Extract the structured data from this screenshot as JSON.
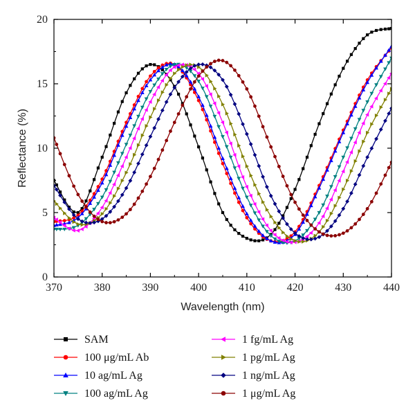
{
  "chart_data": {
    "type": "line",
    "title": "",
    "xlabel": "Wavelength (nm)",
    "ylabel": "Reflectance (%)",
    "xlim": [
      370,
      440
    ],
    "ylim": [
      0,
      20
    ],
    "xticks": [
      "370",
      "380",
      "390",
      "400",
      "410",
      "420",
      "430",
      "440"
    ],
    "yticks": [
      "0",
      "5",
      "10",
      "15",
      "20"
    ],
    "grid": false,
    "legend_position": "bottom",
    "series": [
      {
        "name": "SAM",
        "color": "#000000",
        "marker": "square",
        "x": [
          370,
          375,
          380,
          385,
          390,
          395,
          400,
          405,
          410,
          415,
          420,
          425,
          430,
          435,
          440
        ],
        "y": [
          7.5,
          5.0,
          9.3,
          14.3,
          16.5,
          14.8,
          10.1,
          5.0,
          3.0,
          3.3,
          6.8,
          11.9,
          16.2,
          18.8,
          19.3
        ]
      },
      {
        "name": "100 μg/mL Ab",
        "color": "#ff0000",
        "marker": "circle",
        "x": [
          370,
          375,
          380,
          385,
          390,
          395,
          400,
          405,
          410,
          415,
          420,
          425,
          430,
          435,
          440
        ],
        "y": [
          4.3,
          4.8,
          7.6,
          12.0,
          15.6,
          16.5,
          13.7,
          8.8,
          4.6,
          2.8,
          3.5,
          7.1,
          11.4,
          15.3,
          17.8
        ]
      },
      {
        "name": "10 ag/mL Ag",
        "color": "#0000ff",
        "marker": "triangle-up",
        "x": [
          370,
          375,
          380,
          385,
          390,
          395,
          400,
          405,
          410,
          415,
          420,
          425,
          430,
          435,
          440
        ],
        "y": [
          4.0,
          4.6,
          7.3,
          11.7,
          15.3,
          16.5,
          14.0,
          9.2,
          4.9,
          2.8,
          3.3,
          6.9,
          11.2,
          15.1,
          17.9
        ]
      },
      {
        "name": "100 ag/mL Ag",
        "color": "#008080",
        "marker": "triangle-down",
        "x": [
          370,
          375,
          380,
          385,
          390,
          395,
          400,
          405,
          410,
          415,
          420,
          425,
          430,
          435,
          440
        ],
        "y": [
          3.7,
          4.0,
          6.2,
          10.3,
          14.4,
          16.5,
          15.2,
          10.9,
          6.2,
          3.2,
          2.8,
          5.0,
          9.3,
          13.6,
          17.0
        ]
      },
      {
        "name": "1 fg/mL Ag",
        "color": "#ff00ff",
        "marker": "triangle-left",
        "x": [
          370,
          375,
          380,
          385,
          390,
          395,
          400,
          405,
          410,
          415,
          420,
          425,
          430,
          435,
          440
        ],
        "y": [
          4.6,
          3.6,
          5.4,
          9.3,
          13.6,
          16.3,
          15.8,
          12.0,
          7.0,
          3.6,
          2.7,
          4.2,
          8.2,
          12.6,
          15.8
        ]
      },
      {
        "name": "1 pg/mL Ag",
        "color": "#808000",
        "marker": "triangle-right",
        "x": [
          370,
          375,
          380,
          385,
          390,
          395,
          400,
          405,
          410,
          415,
          420,
          425,
          430,
          435,
          440
        ],
        "y": [
          5.9,
          4.1,
          4.9,
          8.1,
          12.4,
          15.8,
          16.3,
          13.4,
          8.6,
          4.7,
          2.8,
          3.5,
          6.8,
          11.2,
          14.6
        ]
      },
      {
        "name": "1 ng/mL Ag",
        "color": "#000080",
        "marker": "diamond",
        "x": [
          370,
          375,
          380,
          385,
          390,
          395,
          400,
          405,
          410,
          415,
          420,
          425,
          430,
          435,
          440
        ],
        "y": [
          7.1,
          4.5,
          4.5,
          6.9,
          10.9,
          14.7,
          16.5,
          15.3,
          11.1,
          6.3,
          3.4,
          3.1,
          5.3,
          9.3,
          13.1
        ]
      },
      {
        "name": "1 μg/mL Ag",
        "color": "#8b0000",
        "marker": "circle",
        "x": [
          370,
          375,
          380,
          385,
          390,
          395,
          400,
          405,
          410,
          415,
          420,
          425,
          430,
          435,
          440
        ],
        "y": [
          10.8,
          6.4,
          4.3,
          4.9,
          7.8,
          12.0,
          15.6,
          16.8,
          14.6,
          10.1,
          5.8,
          3.5,
          3.4,
          5.3,
          8.9
        ]
      }
    ]
  }
}
